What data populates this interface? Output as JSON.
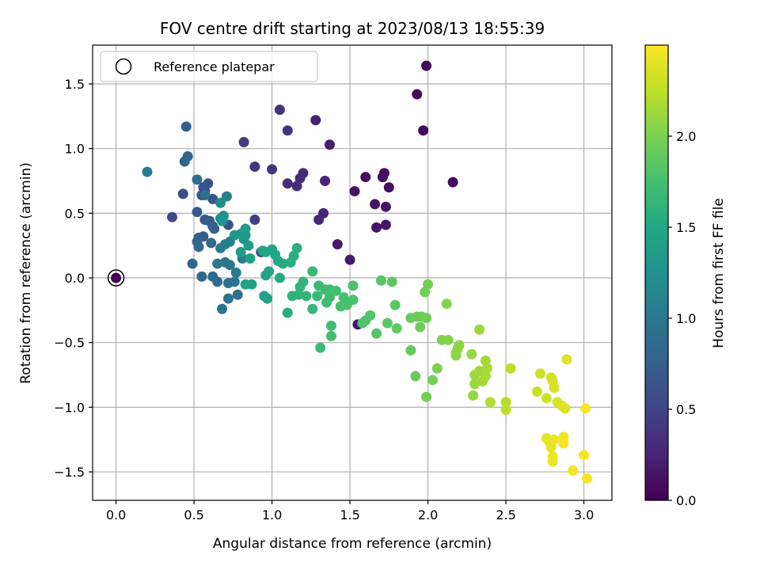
{
  "chart_data": {
    "type": "scatter",
    "title": "FOV centre drift starting at 2023/08/13 18:55:39",
    "xlabel": "Angular distance from reference (arcmin)",
    "ylabel": "Rotation from reference (arcmin)",
    "xlim": [
      -0.15,
      3.18
    ],
    "ylim": [
      -1.72,
      1.8
    ],
    "xticks": [
      0.0,
      0.5,
      1.0,
      1.5,
      2.0,
      2.5,
      3.0
    ],
    "xtick_labels": [
      "0.0",
      "0.5",
      "1.0",
      "1.5",
      "2.0",
      "2.5",
      "3.0"
    ],
    "yticks": [
      -1.5,
      -1.0,
      -0.5,
      0.0,
      0.5,
      1.0,
      1.5
    ],
    "ytick_labels": [
      "−1.5",
      "−1.0",
      "−0.5",
      "0.0",
      "0.5",
      "1.0",
      "1.5"
    ],
    "grid": true,
    "legend": {
      "position": "top-left",
      "entries": [
        {
          "label": "Reference platepar",
          "marker": "open-circle"
        }
      ]
    },
    "reference_point": {
      "x": 0.0,
      "y": 0.0
    },
    "colorbar": {
      "label": "Hours from first FF file",
      "colormap": "viridis",
      "range": [
        0.0,
        2.5
      ],
      "ticks": [
        0.0,
        0.5,
        1.0,
        1.5,
        2.0
      ],
      "tick_labels": [
        "0.0",
        "0.5",
        "1.0",
        "1.5",
        "2.0"
      ]
    },
    "points": [
      {
        "x": 0.0,
        "y": 0.0,
        "c": 0.0
      },
      {
        "x": 1.99,
        "y": 1.64,
        "c": 0.05
      },
      {
        "x": 1.93,
        "y": 1.42,
        "c": 0.05
      },
      {
        "x": 1.97,
        "y": 1.14,
        "c": 0.06
      },
      {
        "x": 2.16,
        "y": 0.74,
        "c": 0.08
      },
      {
        "x": 1.72,
        "y": 0.81,
        "c": 0.08
      },
      {
        "x": 1.71,
        "y": 0.78,
        "c": 0.09
      },
      {
        "x": 1.75,
        "y": 0.7,
        "c": 0.1
      },
      {
        "x": 1.6,
        "y": 0.78,
        "c": 0.1
      },
      {
        "x": 1.53,
        "y": 0.67,
        "c": 0.12
      },
      {
        "x": 1.66,
        "y": 0.57,
        "c": 0.12
      },
      {
        "x": 1.73,
        "y": 0.55,
        "c": 0.13
      },
      {
        "x": 1.67,
        "y": 0.39,
        "c": 0.13
      },
      {
        "x": 1.73,
        "y": 0.41,
        "c": 0.14
      },
      {
        "x": 1.55,
        "y": -0.36,
        "c": 0.15
      },
      {
        "x": 1.42,
        "y": 0.26,
        "c": 0.17
      },
      {
        "x": 1.5,
        "y": 0.14,
        "c": 0.18
      },
      {
        "x": 1.37,
        "y": 1.03,
        "c": 0.2
      },
      {
        "x": 1.28,
        "y": 1.22,
        "c": 0.22
      },
      {
        "x": 1.34,
        "y": 0.75,
        "c": 0.25
      },
      {
        "x": 1.33,
        "y": 0.5,
        "c": 0.27
      },
      {
        "x": 1.3,
        "y": 0.45,
        "c": 0.28
      },
      {
        "x": 1.2,
        "y": 0.81,
        "c": 0.3
      },
      {
        "x": 1.18,
        "y": 0.77,
        "c": 0.3
      },
      {
        "x": 1.16,
        "y": 0.71,
        "c": 0.32
      },
      {
        "x": 1.1,
        "y": 0.73,
        "c": 0.33
      },
      {
        "x": 1.05,
        "y": 1.3,
        "c": 0.35
      },
      {
        "x": 1.1,
        "y": 1.14,
        "c": 0.36
      },
      {
        "x": 0.89,
        "y": 0.86,
        "c": 0.38
      },
      {
        "x": 1.0,
        "y": 0.84,
        "c": 0.4
      },
      {
        "x": 0.82,
        "y": 1.05,
        "c": 0.42
      },
      {
        "x": 0.89,
        "y": 0.45,
        "c": 0.45
      },
      {
        "x": 0.93,
        "y": 0.2,
        "c": 0.48
      },
      {
        "x": 0.36,
        "y": 0.47,
        "c": 0.55
      },
      {
        "x": 0.43,
        "y": 0.65,
        "c": 0.58
      },
      {
        "x": 0.56,
        "y": 0.7,
        "c": 0.6
      },
      {
        "x": 0.57,
        "y": 0.67,
        "c": 0.62
      },
      {
        "x": 0.55,
        "y": 0.64,
        "c": 0.63
      },
      {
        "x": 0.59,
        "y": 0.73,
        "c": 0.65
      },
      {
        "x": 0.62,
        "y": 0.61,
        "c": 0.66
      },
      {
        "x": 0.72,
        "y": 0.41,
        "c": 0.67
      },
      {
        "x": 0.57,
        "y": 0.45,
        "c": 0.68
      },
      {
        "x": 0.52,
        "y": 0.51,
        "c": 0.7
      },
      {
        "x": 0.56,
        "y": 0.32,
        "c": 0.72
      },
      {
        "x": 0.53,
        "y": 0.31,
        "c": 0.74
      },
      {
        "x": 0.6,
        "y": 0.44,
        "c": 0.75
      },
      {
        "x": 0.62,
        "y": 0.4,
        "c": 0.76
      },
      {
        "x": 0.63,
        "y": 0.38,
        "c": 0.78
      },
      {
        "x": 0.52,
        "y": 0.28,
        "c": 0.8
      },
      {
        "x": 0.49,
        "y": 0.11,
        "c": 0.82
      },
      {
        "x": 0.53,
        "y": 0.24,
        "c": 0.84
      },
      {
        "x": 0.55,
        "y": 0.01,
        "c": 0.85
      },
      {
        "x": 0.61,
        "y": 0.27,
        "c": 0.86
      },
      {
        "x": 0.62,
        "y": 0.01,
        "c": 0.87
      },
      {
        "x": 0.65,
        "y": -0.03,
        "c": 0.88
      },
      {
        "x": 0.72,
        "y": -0.04,
        "c": 0.9
      },
      {
        "x": 0.78,
        "y": -0.13,
        "c": 0.92
      },
      {
        "x": 0.72,
        "y": -0.16,
        "c": 0.94
      },
      {
        "x": 0.68,
        "y": -0.24,
        "c": 0.95
      },
      {
        "x": 0.76,
        "y": -0.03,
        "c": 0.96
      },
      {
        "x": 0.7,
        "y": 0.12,
        "c": 0.98
      },
      {
        "x": 0.65,
        "y": 0.11,
        "c": 1.0
      },
      {
        "x": 0.73,
        "y": 0.1,
        "c": 1.0
      },
      {
        "x": 0.77,
        "y": 0.04,
        "c": 1.02
      },
      {
        "x": 0.81,
        "y": 0.15,
        "c": 1.03
      },
      {
        "x": 0.67,
        "y": 0.23,
        "c": 1.04
      },
      {
        "x": 0.7,
        "y": 0.26,
        "c": 1.05
      },
      {
        "x": 0.73,
        "y": 0.28,
        "c": 1.06
      },
      {
        "x": 0.45,
        "y": 1.17,
        "c": 0.75
      },
      {
        "x": 0.46,
        "y": 0.94,
        "c": 0.8
      },
      {
        "x": 0.44,
        "y": 0.9,
        "c": 0.82
      },
      {
        "x": 0.52,
        "y": 0.76,
        "c": 0.9
      },
      {
        "x": 0.2,
        "y": 0.82,
        "c": 1.05
      },
      {
        "x": 0.57,
        "y": 0.64,
        "c": 0.92
      },
      {
        "x": 0.71,
        "y": 0.63,
        "c": 1.1
      },
      {
        "x": 0.67,
        "y": 0.58,
        "c": 1.2
      },
      {
        "x": 0.67,
        "y": 0.46,
        "c": 1.22
      },
      {
        "x": 0.69,
        "y": 0.48,
        "c": 1.25
      },
      {
        "x": 0.68,
        "y": 0.44,
        "c": 1.28
      },
      {
        "x": 0.76,
        "y": 0.33,
        "c": 1.3
      },
      {
        "x": 0.8,
        "y": 0.34,
        "c": 1.3
      },
      {
        "x": 0.82,
        "y": 0.3,
        "c": 1.32
      },
      {
        "x": 0.83,
        "y": 0.33,
        "c": 1.34
      },
      {
        "x": 0.83,
        "y": 0.38,
        "c": 1.35
      },
      {
        "x": 0.85,
        "y": 0.25,
        "c": 1.36
      },
      {
        "x": 0.8,
        "y": 0.2,
        "c": 1.38
      },
      {
        "x": 0.86,
        "y": 0.15,
        "c": 1.4
      },
      {
        "x": 0.83,
        "y": -0.05,
        "c": 1.42
      },
      {
        "x": 0.87,
        "y": -0.05,
        "c": 1.42
      },
      {
        "x": 0.95,
        "y": -0.14,
        "c": 1.44
      },
      {
        "x": 0.97,
        "y": -0.16,
        "c": 1.44
      },
      {
        "x": 0.96,
        "y": 0.02,
        "c": 1.45
      },
      {
        "x": 0.98,
        "y": 0.05,
        "c": 1.46
      },
      {
        "x": 1.0,
        "y": 0.22,
        "c": 1.47
      },
      {
        "x": 0.94,
        "y": 0.21,
        "c": 1.48
      },
      {
        "x": 0.96,
        "y": 0.2,
        "c": 1.48
      },
      {
        "x": 1.02,
        "y": 0.18,
        "c": 1.5
      },
      {
        "x": 1.04,
        "y": 0.13,
        "c": 1.5
      },
      {
        "x": 1.05,
        "y": 0.0,
        "c": 1.52
      },
      {
        "x": 1.07,
        "y": 0.11,
        "c": 1.52
      },
      {
        "x": 1.1,
        "y": -0.27,
        "c": 1.54
      },
      {
        "x": 1.12,
        "y": 0.12,
        "c": 1.55
      },
      {
        "x": 1.14,
        "y": 0.17,
        "c": 1.56
      },
      {
        "x": 1.16,
        "y": 0.23,
        "c": 1.58
      },
      {
        "x": 1.17,
        "y": -0.13,
        "c": 1.6
      },
      {
        "x": 1.13,
        "y": -0.14,
        "c": 1.6
      },
      {
        "x": 1.18,
        "y": -0.07,
        "c": 1.62
      },
      {
        "x": 1.2,
        "y": -0.03,
        "c": 1.63
      },
      {
        "x": 1.22,
        "y": -0.14,
        "c": 1.64
      },
      {
        "x": 1.26,
        "y": -0.24,
        "c": 1.65
      },
      {
        "x": 1.26,
        "y": 0.05,
        "c": 1.66
      },
      {
        "x": 1.29,
        "y": -0.14,
        "c": 1.67
      },
      {
        "x": 1.3,
        "y": -0.06,
        "c": 1.68
      },
      {
        "x": 1.31,
        "y": -0.54,
        "c": 1.69
      },
      {
        "x": 1.34,
        "y": -0.09,
        "c": 1.7
      },
      {
        "x": 1.35,
        "y": -0.19,
        "c": 1.71
      },
      {
        "x": 1.37,
        "y": -0.09,
        "c": 1.72
      },
      {
        "x": 1.37,
        "y": -0.15,
        "c": 1.72
      },
      {
        "x": 1.38,
        "y": -0.37,
        "c": 1.73
      },
      {
        "x": 1.38,
        "y": -0.45,
        "c": 1.74
      },
      {
        "x": 1.41,
        "y": -0.1,
        "c": 1.75
      },
      {
        "x": 1.44,
        "y": -0.22,
        "c": 1.76
      },
      {
        "x": 1.46,
        "y": -0.15,
        "c": 1.77
      },
      {
        "x": 1.48,
        "y": -0.21,
        "c": 1.78
      },
      {
        "x": 1.52,
        "y": -0.17,
        "c": 1.78
      },
      {
        "x": 1.52,
        "y": -0.06,
        "c": 1.79
      },
      {
        "x": 1.58,
        "y": -0.35,
        "c": 1.8
      },
      {
        "x": 1.6,
        "y": -0.33,
        "c": 1.81
      },
      {
        "x": 1.63,
        "y": -0.29,
        "c": 1.82
      },
      {
        "x": 1.67,
        "y": -0.43,
        "c": 1.83
      },
      {
        "x": 1.7,
        "y": -0.02,
        "c": 1.84
      },
      {
        "x": 1.74,
        "y": -0.35,
        "c": 1.85
      },
      {
        "x": 1.77,
        "y": -0.03,
        "c": 1.86
      },
      {
        "x": 1.79,
        "y": -0.21,
        "c": 1.87
      },
      {
        "x": 1.8,
        "y": -0.39,
        "c": 1.88
      },
      {
        "x": 1.89,
        "y": -0.31,
        "c": 1.9
      },
      {
        "x": 1.89,
        "y": -0.56,
        "c": 1.9
      },
      {
        "x": 1.93,
        "y": -0.3,
        "c": 1.92
      },
      {
        "x": 1.92,
        "y": -0.76,
        "c": 1.92
      },
      {
        "x": 1.96,
        "y": -0.3,
        "c": 1.93
      },
      {
        "x": 1.95,
        "y": -0.38,
        "c": 1.94
      },
      {
        "x": 1.99,
        "y": -0.31,
        "c": 1.95
      },
      {
        "x": 1.98,
        "y": -0.11,
        "c": 1.95
      },
      {
        "x": 2.0,
        "y": -0.05,
        "c": 1.96
      },
      {
        "x": 1.99,
        "y": -0.92,
        "c": 1.97
      },
      {
        "x": 2.03,
        "y": -0.79,
        "c": 1.98
      },
      {
        "x": 2.06,
        "y": -0.7,
        "c": 2.0
      },
      {
        "x": 2.09,
        "y": -0.48,
        "c": 2.02
      },
      {
        "x": 2.12,
        "y": -0.2,
        "c": 2.03
      },
      {
        "x": 2.13,
        "y": -0.48,
        "c": 2.04
      },
      {
        "x": 2.18,
        "y": -0.58,
        "c": 2.05
      },
      {
        "x": 2.18,
        "y": -0.6,
        "c": 2.06
      },
      {
        "x": 2.2,
        "y": -0.52,
        "c": 2.07
      },
      {
        "x": 2.19,
        "y": -0.55,
        "c": 2.08
      },
      {
        "x": 2.28,
        "y": -0.59,
        "c": 2.1
      },
      {
        "x": 2.29,
        "y": -0.91,
        "c": 2.1
      },
      {
        "x": 2.3,
        "y": -0.82,
        "c": 2.12
      },
      {
        "x": 2.3,
        "y": -0.75,
        "c": 2.12
      },
      {
        "x": 2.33,
        "y": -0.4,
        "c": 2.13
      },
      {
        "x": 2.33,
        "y": -0.72,
        "c": 2.14
      },
      {
        "x": 2.35,
        "y": -0.8,
        "c": 2.15
      },
      {
        "x": 2.37,
        "y": -0.64,
        "c": 2.16
      },
      {
        "x": 2.37,
        "y": -0.76,
        "c": 2.17
      },
      {
        "x": 2.38,
        "y": -0.7,
        "c": 2.18
      },
      {
        "x": 2.4,
        "y": -0.96,
        "c": 2.2
      },
      {
        "x": 2.5,
        "y": -0.96,
        "c": 2.22
      },
      {
        "x": 2.5,
        "y": -1.02,
        "c": 2.24
      },
      {
        "x": 2.53,
        "y": -0.7,
        "c": 2.25
      },
      {
        "x": 2.7,
        "y": -0.88,
        "c": 2.28
      },
      {
        "x": 2.72,
        "y": -0.74,
        "c": 2.3
      },
      {
        "x": 2.76,
        "y": -0.93,
        "c": 2.32
      },
      {
        "x": 2.79,
        "y": -0.77,
        "c": 2.33
      },
      {
        "x": 2.8,
        "y": -0.8,
        "c": 2.34
      },
      {
        "x": 2.81,
        "y": -0.85,
        "c": 2.35
      },
      {
        "x": 2.83,
        "y": -0.96,
        "c": 2.36
      },
      {
        "x": 2.86,
        "y": -0.99,
        "c": 2.37
      },
      {
        "x": 2.88,
        "y": -1.01,
        "c": 2.38
      },
      {
        "x": 2.89,
        "y": -0.63,
        "c": 2.39
      },
      {
        "x": 2.76,
        "y": -1.24,
        "c": 2.4
      },
      {
        "x": 2.78,
        "y": -1.27,
        "c": 2.41
      },
      {
        "x": 2.79,
        "y": -1.31,
        "c": 2.42
      },
      {
        "x": 2.81,
        "y": -1.25,
        "c": 2.43
      },
      {
        "x": 2.8,
        "y": -1.38,
        "c": 2.44
      },
      {
        "x": 2.8,
        "y": -1.42,
        "c": 2.44
      },
      {
        "x": 2.87,
        "y": -1.23,
        "c": 2.45
      },
      {
        "x": 2.87,
        "y": -1.28,
        "c": 2.46
      },
      {
        "x": 2.93,
        "y": -1.49,
        "c": 2.47
      },
      {
        "x": 3.0,
        "y": -1.37,
        "c": 2.47
      },
      {
        "x": 3.01,
        "y": -1.01,
        "c": 2.48
      },
      {
        "x": 3.02,
        "y": -1.55,
        "c": 2.48
      }
    ]
  }
}
